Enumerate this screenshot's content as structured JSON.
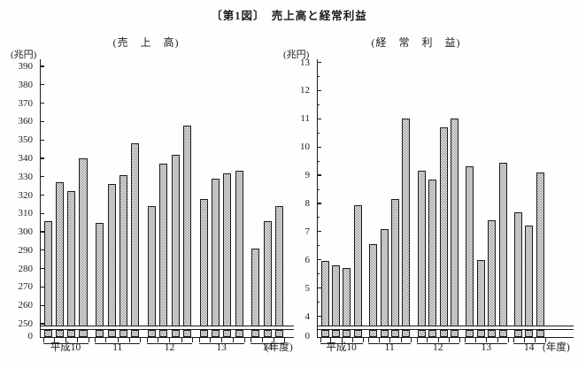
{
  "title": "〔第1図〕　売上高と経常利益",
  "colors": {
    "ink": "#1c1c1c",
    "bar_fill": "#eceae5",
    "bar_pattern": "#9a9a9a",
    "background": "#fefefd"
  },
  "chart_data": [
    {
      "type": "bar",
      "name": "sales",
      "title": "(売　上　高)",
      "ylabel_unit": "(兆円)",
      "zero_label": "0",
      "x_suffix": "(年度)",
      "ylim": [
        250,
        390
      ],
      "ytick_step": 10,
      "minor_ticks": false,
      "axis_break": true,
      "grid": false,
      "categories": [
        "平成10",
        "11",
        "12",
        "13",
        "14"
      ],
      "series_note": "quarterly bars per fiscal year, trillions of yen",
      "groups": [
        {
          "label": "平成10",
          "values": [
            306,
            327,
            322,
            340
          ]
        },
        {
          "label": "11",
          "values": [
            305,
            326,
            331,
            348
          ]
        },
        {
          "label": "12",
          "values": [
            314,
            337,
            342,
            358
          ]
        },
        {
          "label": "13",
          "values": [
            318,
            329,
            332,
            333
          ]
        },
        {
          "label": "14",
          "values": [
            291,
            306,
            314
          ]
        }
      ]
    },
    {
      "type": "bar",
      "name": "ordinary-profit",
      "title": "(経　常　利　益)",
      "ylabel_unit": "(兆円)",
      "zero_label": "0",
      "x_suffix": "(年度)",
      "ylim": [
        4,
        13
      ],
      "ytick_step": 1,
      "minor_ticks": true,
      "axis_break": true,
      "grid": false,
      "categories": [
        "平成10",
        "11",
        "12",
        "13",
        "14"
      ],
      "series_note": "quarterly bars per fiscal year, trillions of yen",
      "groups": [
        {
          "label": "平成10",
          "values": [
            5.95,
            5.8,
            5.7,
            7.95
          ]
        },
        {
          "label": "11",
          "values": [
            6.55,
            7.1,
            8.15,
            11.0
          ]
        },
        {
          "label": "12",
          "values": [
            9.15,
            8.85,
            10.7,
            11.0
          ]
        },
        {
          "label": "13",
          "values": [
            9.3,
            6.0,
            7.4,
            9.45
          ]
        },
        {
          "label": "14",
          "values": [
            7.7,
            7.2,
            9.1
          ]
        }
      ]
    }
  ]
}
